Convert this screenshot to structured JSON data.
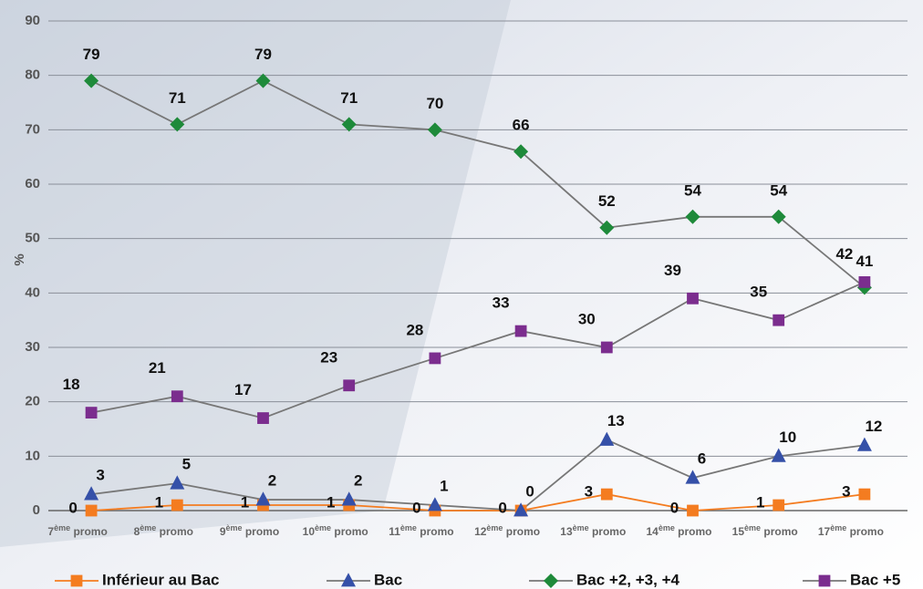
{
  "chart_data": {
    "type": "line",
    "y_label": "%",
    "categories": [
      "7ème promo",
      "8ème promo",
      "9ème promo",
      "10ème promo",
      "11ème promo",
      "12ème promo",
      "13ème promo",
      "14ème promo",
      "15ème promo",
      "17ème promo"
    ],
    "series": [
      {
        "name": "Inférieur au Bac",
        "color": "#f47c20",
        "line_color": "#f47c20",
        "marker": "square",
        "values": [
          0,
          1,
          1,
          1,
          0,
          0,
          3,
          0,
          1,
          3
        ]
      },
      {
        "name": "Bac",
        "color": "#3550a8",
        "line_color": "#777777",
        "marker": "triangle",
        "values": [
          3,
          5,
          2,
          2,
          1,
          0,
          13,
          6,
          10,
          12
        ]
      },
      {
        "name": "Bac +2, +3, +4",
        "color": "#1e8a3a",
        "line_color": "#777777",
        "marker": "diamond",
        "values": [
          79,
          71,
          79,
          71,
          70,
          66,
          52,
          54,
          54,
          41
        ]
      },
      {
        "name": "Bac +5",
        "color": "#7b2d8e",
        "line_color": "#777777",
        "marker": "square",
        "values": [
          18,
          21,
          17,
          23,
          28,
          33,
          30,
          39,
          35,
          42
        ]
      }
    ],
    "ylim": [
      0,
      90
    ],
    "yticks": [
      0,
      10,
      20,
      30,
      40,
      50,
      60,
      70,
      80,
      90
    ],
    "grid": true
  }
}
